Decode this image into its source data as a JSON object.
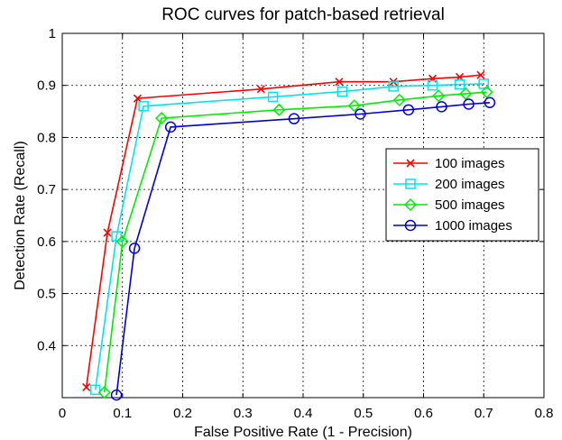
{
  "chart_data": {
    "type": "line",
    "title": "ROC curves for patch-based retrieval",
    "xlabel": "False Positive Rate (1 - Precision)",
    "ylabel": "Detection Rate (Recall)",
    "xlim": [
      0,
      0.8
    ],
    "ylim": [
      0.3,
      1
    ],
    "xticks": [
      "0",
      "0.1",
      "0.2",
      "0.3",
      "0.4",
      "0.5",
      "0.6",
      "0.7",
      "0.8"
    ],
    "yticks": [
      "0.4",
      "0.5",
      "0.6",
      "0.7",
      "0.8",
      "0.9",
      "1"
    ],
    "grid": true,
    "legend_position": "center-right",
    "series": [
      {
        "name": "100 images",
        "color": "#ff0000",
        "marker": "x",
        "points": [
          [
            0.04,
            0.32
          ],
          [
            0.075,
            0.617
          ],
          [
            0.125,
            0.875
          ],
          [
            0.33,
            0.893
          ],
          [
            0.46,
            0.907
          ],
          [
            0.55,
            0.907
          ],
          [
            0.615,
            0.913
          ],
          [
            0.66,
            0.916
          ],
          [
            0.695,
            0.92
          ]
        ]
      },
      {
        "name": "200 images",
        "color": "#00e5ee",
        "marker": "square",
        "points": [
          [
            0.055,
            0.315
          ],
          [
            0.09,
            0.61
          ],
          [
            0.135,
            0.86
          ],
          [
            0.35,
            0.878
          ],
          [
            0.465,
            0.888
          ],
          [
            0.55,
            0.898
          ],
          [
            0.615,
            0.9
          ],
          [
            0.66,
            0.902
          ],
          [
            0.7,
            0.903
          ]
        ]
      },
      {
        "name": "500 images",
        "color": "#00ee00",
        "marker": "diamond",
        "points": [
          [
            0.07,
            0.31
          ],
          [
            0.1,
            0.6
          ],
          [
            0.165,
            0.837
          ],
          [
            0.36,
            0.853
          ],
          [
            0.485,
            0.861
          ],
          [
            0.56,
            0.872
          ],
          [
            0.625,
            0.88
          ],
          [
            0.67,
            0.884
          ],
          [
            0.705,
            0.887
          ]
        ]
      },
      {
        "name": "1000 images",
        "color": "#0000dd",
        "marker": "circle",
        "points": [
          [
            0.09,
            0.305
          ],
          [
            0.12,
            0.587
          ],
          [
            0.18,
            0.82
          ],
          [
            0.385,
            0.836
          ],
          [
            0.495,
            0.845
          ],
          [
            0.575,
            0.853
          ],
          [
            0.63,
            0.859
          ],
          [
            0.675,
            0.864
          ],
          [
            0.71,
            0.867
          ]
        ]
      }
    ]
  }
}
